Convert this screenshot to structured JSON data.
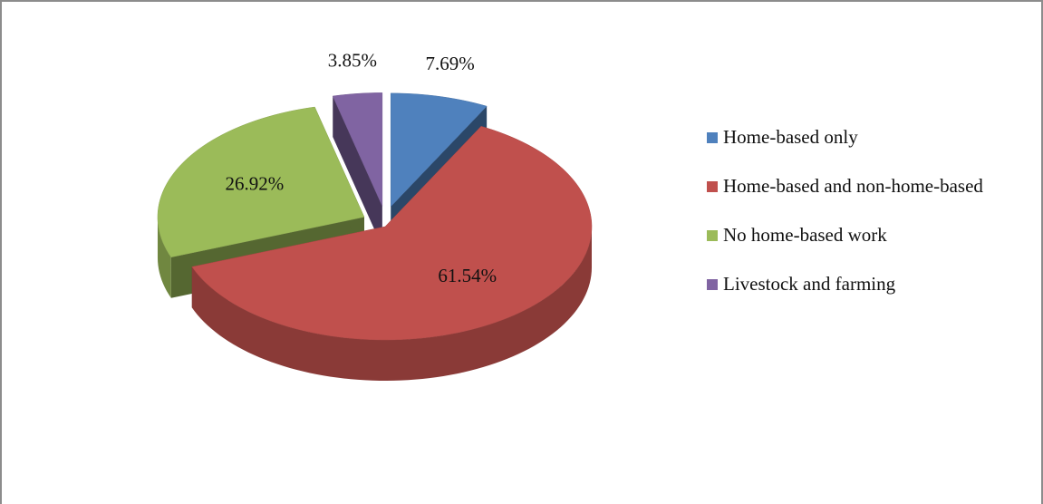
{
  "chart_data": {
    "type": "pie",
    "categories": [
      "Home-based only",
      "Home-based and non-home-based",
      "No home-based work",
      "Livestock and farming"
    ],
    "values": [
      7.69,
      61.54,
      26.92,
      3.85
    ],
    "value_labels": [
      "7.69%",
      "61.54%",
      "26.92%",
      "3.85%"
    ],
    "colors": [
      "#4f81bd",
      "#c0504d",
      "#9bbb59",
      "#8064a2"
    ],
    "legend": "right"
  }
}
